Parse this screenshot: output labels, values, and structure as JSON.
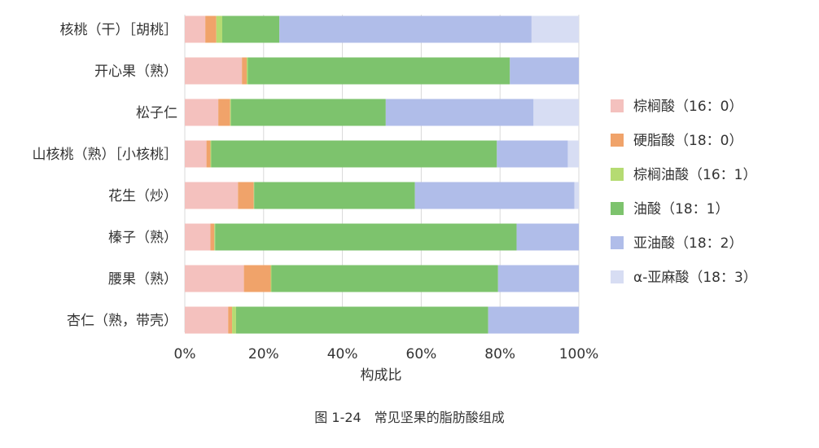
{
  "chart_data": {
    "type": "bar",
    "orientation": "horizontal",
    "stacked": true,
    "categories": [
      "核桃（干）［胡桃］",
      "开心果（熟）",
      "松子仁",
      "山核桃（熟）［小核桃］",
      "花生（炒）",
      "榛子（熟）",
      "腰果（熟）",
      "杏仁（熟，带壳）"
    ],
    "series": [
      {
        "name": "棕榈酸（16：0）",
        "color": "#f4c1be",
        "values": [
          5.2,
          14.5,
          8.5,
          5.5,
          13.5,
          6.5,
          15.0,
          11.0
        ]
      },
      {
        "name": "硬脂酸（18：0）",
        "color": "#f0a36a",
        "values": [
          2.8,
          1.2,
          3.0,
          1.0,
          4.0,
          1.0,
          6.8,
          1.0
        ]
      },
      {
        "name": "棕榈油酸（16：1）",
        "color": "#b5db72",
        "values": [
          1.5,
          0.3,
          0.2,
          0.2,
          0.1,
          0.2,
          0.2,
          1.0
        ]
      },
      {
        "name": "油酸（18：1）",
        "color": "#7dc36d",
        "values": [
          14.5,
          66.5,
          39.3,
          72.5,
          40.8,
          76.5,
          57.5,
          64.0
        ]
      },
      {
        "name": "亚油酸（18：2）",
        "color": "#b0bde9",
        "values": [
          64.0,
          17.5,
          37.5,
          18.0,
          40.5,
          15.8,
          20.5,
          23.0
        ]
      },
      {
        "name": "α-亚麻酸（18：3）",
        "color": "#d7ddf3",
        "values": [
          12.0,
          0.0,
          11.5,
          2.8,
          1.1,
          0.0,
          0.0,
          0.0
        ]
      }
    ],
    "xlabel": "构成比",
    "xlim": [
      0,
      100
    ],
    "xticks": [
      "0%",
      "20%",
      "40%",
      "60%",
      "80%",
      "100%"
    ],
    "grid": true,
    "legend": "right"
  },
  "caption": "图 1-24　常见坚果的脂肪酸组成"
}
